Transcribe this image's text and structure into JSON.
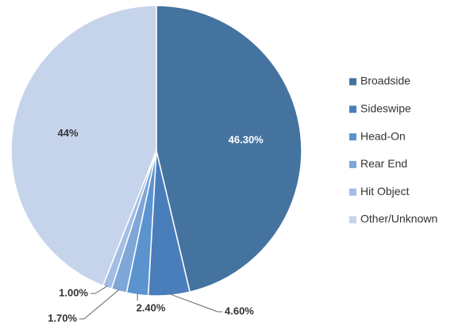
{
  "chart_data": {
    "type": "pie",
    "categories": [
      "Broadside",
      "Sideswipe",
      "Head-On",
      "Rear End",
      "Hit Object",
      "Other/Unknown"
    ],
    "values": [
      46.3,
      4.6,
      2.4,
      1.7,
      1.0,
      44
    ],
    "value_labels": [
      "46.30%",
      "4.60%",
      "2.40%",
      "1.70%",
      "1.00%",
      "44%"
    ],
    "colors": [
      "#44739f",
      "#4a7eba",
      "#5b93cf",
      "#7ea6d8",
      "#a3bde3",
      "#c5d4ea"
    ],
    "legend": "right"
  }
}
